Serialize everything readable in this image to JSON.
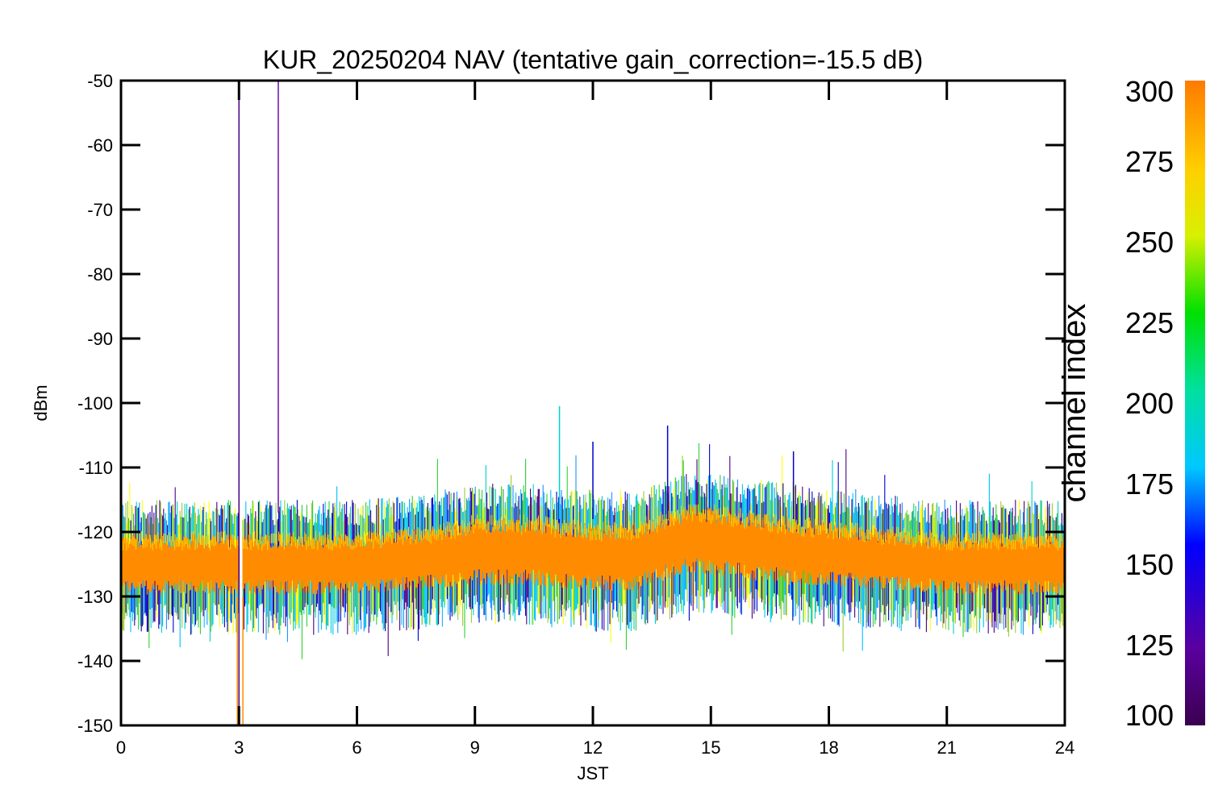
{
  "chart_data": {
    "type": "line",
    "title": "KUR_20250204 NAV (tentative gain_correction=-15.5 dB)",
    "xlabel": "JST",
    "ylabel": "dBm",
    "xlim": [
      0,
      24
    ],
    "ylim": [
      -150,
      -50
    ],
    "xticks": [
      0,
      3,
      6,
      9,
      12,
      15,
      18,
      21,
      24
    ],
    "yticks": [
      -50,
      -60,
      -70,
      -80,
      -90,
      -100,
      -110,
      -120,
      -130,
      -140,
      -150
    ],
    "colorbar": {
      "label": "channel index",
      "range": [
        100,
        300
      ],
      "ticks": [
        300,
        275,
        250,
        225,
        200,
        175,
        150,
        125,
        100
      ],
      "colormap": "rainbow (purple → blue → cyan → green → yellow → orange)"
    },
    "series": [
      {
        "color": "#ff8c00",
        "envelope": {
          "x": [
            0,
            3,
            6,
            8,
            9,
            10.5,
            12,
            13,
            14.5,
            17,
            19,
            21,
            24
          ],
          "center": [
            -125,
            -125,
            -125,
            -124,
            -123,
            -123,
            -124,
            -124,
            -121,
            -123,
            -124,
            -125,
            -125
          ],
          "half_width": [
            4.5,
            4.5,
            4.5,
            4.5,
            5,
            5,
            5,
            5,
            5,
            5,
            4.5,
            4.5,
            4.5
          ]
        }
      }
    ],
    "annotations": {
      "spikes": [
        {
          "x": 3.0,
          "y_top": -50,
          "y_bottom": -150,
          "color": "#4b0082"
        },
        {
          "x": 4.0,
          "y_top": -50,
          "y_bottom": -117,
          "color": "#6a0dad"
        },
        {
          "x": 11.15,
          "y_top": -100.5,
          "color": "#00ced1"
        },
        {
          "x": 13.9,
          "y_top": -103.5,
          "color": "#0000cd"
        },
        {
          "x": 12.0,
          "y_top": -106,
          "color": "#0000cd"
        },
        {
          "x": 17.1,
          "y_top": -107.5,
          "color": "#0000cd"
        }
      ],
      "gap": {
        "x": 3.05,
        "note": "data gap"
      }
    }
  }
}
